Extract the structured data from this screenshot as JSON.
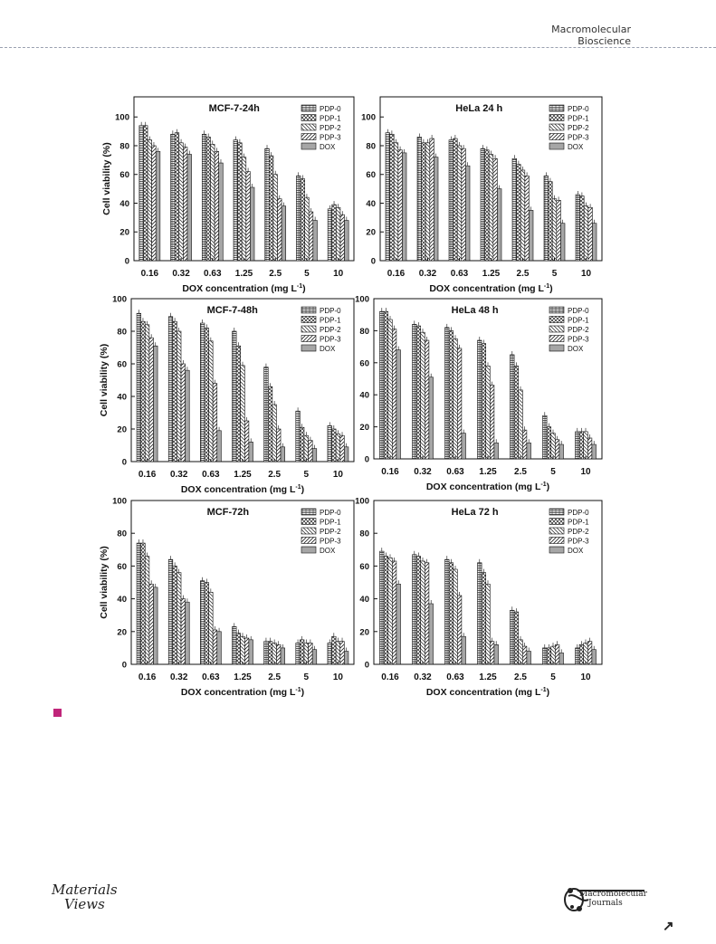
{
  "header": {
    "journal_line1": "Macromolecular",
    "journal_line2": "Bioscience"
  },
  "footer": {
    "left_logo_line1": "Materials",
    "left_logo_line2": "Views",
    "right_logo_line1": "Macromolecular",
    "right_logo_line2": "Journals",
    "next_page_icon": "arrow-up-right-icon"
  },
  "colors": {
    "caption_marker": "#c0257a",
    "bars": "#ffffff",
    "axes": "#111111"
  },
  "chart_data": [
    {
      "type": "bar",
      "title": "MCF-7-24h",
      "categories": [
        "0.16",
        "0.32",
        "0.63",
        "1.25",
        "2.5",
        "5",
        "10"
      ],
      "xlabel": "DOX concentration (mg L",
      "xlabel_sup": "-1",
      "xlabel_close": ")",
      "ylabel": "Cell viability (%)",
      "ylim": [
        0,
        100
      ],
      "yticks": [
        "0",
        "20",
        "40",
        "60",
        "80",
        "100"
      ],
      "legend_position": "top-right",
      "series": [
        {
          "name": "PDP-0",
          "values": [
            94,
            88,
            88,
            84,
            78,
            59,
            36
          ]
        },
        {
          "name": "PDP-1",
          "values": [
            94,
            89,
            86,
            82,
            73,
            57,
            39
          ]
        },
        {
          "name": "PDP-2",
          "values": [
            84,
            82,
            81,
            72,
            60,
            44,
            37
          ]
        },
        {
          "name": "PDP-3",
          "values": [
            80,
            79,
            76,
            62,
            43,
            34,
            32
          ]
        },
        {
          "name": "DOX",
          "values": [
            76,
            74,
            68,
            51,
            38,
            28,
            28
          ]
        }
      ]
    },
    {
      "type": "bar",
      "title": "HeLa 24 h",
      "categories": [
        "0.16",
        "0.32",
        "0.63",
        "1.25",
        "2.5",
        "5",
        "10"
      ],
      "xlabel": "DOX concentration (mg L",
      "xlabel_sup": "-1",
      "xlabel_close": ")",
      "ylabel": "",
      "ylim": [
        0,
        100
      ],
      "yticks": [
        "0",
        "20",
        "40",
        "60",
        "80",
        "100"
      ],
      "legend_position": "top-right",
      "series": [
        {
          "name": "PDP-0",
          "values": [
            89,
            86,
            84,
            78,
            71,
            59,
            46
          ]
        },
        {
          "name": "PDP-1",
          "values": [
            88,
            82,
            85,
            77,
            67,
            55,
            45
          ]
        },
        {
          "name": "PDP-2",
          "values": [
            82,
            82,
            80,
            74,
            63,
            43,
            38
          ]
        },
        {
          "name": "PDP-3",
          "values": [
            77,
            85,
            78,
            71,
            59,
            42,
            37
          ]
        },
        {
          "name": "DOX",
          "values": [
            75,
            72,
            66,
            50,
            35,
            26,
            26
          ]
        }
      ]
    },
    {
      "type": "bar",
      "title": "MCF-7-48h",
      "categories": [
        "0.16",
        "0.32",
        "0.63",
        "1.25",
        "2.5",
        "5",
        "10"
      ],
      "xlabel": "DOX concentration (mg L",
      "xlabel_sup": "-1",
      "xlabel_close": ")",
      "ylabel": "Cell viability (%)",
      "ylim": [
        0,
        100
      ],
      "yticks": [
        "0",
        "20",
        "40",
        "60",
        "80",
        "100"
      ],
      "legend_position": "top-right",
      "series": [
        {
          "name": "PDP-0",
          "values": [
            91,
            89,
            85,
            80,
            58,
            31,
            22
          ]
        },
        {
          "name": "PDP-1",
          "values": [
            86,
            86,
            82,
            71,
            46,
            21,
            20
          ]
        },
        {
          "name": "PDP-2",
          "values": [
            84,
            80,
            74,
            59,
            35,
            16,
            17
          ]
        },
        {
          "name": "PDP-3",
          "values": [
            76,
            60,
            48,
            25,
            20,
            13,
            16
          ]
        },
        {
          "name": "DOX",
          "values": [
            71,
            56,
            19,
            12,
            9,
            8,
            9
          ]
        }
      ]
    },
    {
      "type": "bar",
      "title": "HeLa 48 h",
      "categories": [
        "0.16",
        "0.32",
        "0.63",
        "1.25",
        "2.5",
        "5",
        "10"
      ],
      "xlabel": "DOX concentration (mg L",
      "xlabel_sup": "-1",
      "xlabel_close": ")",
      "ylabel": "",
      "ylim": [
        0,
        100
      ],
      "yticks": [
        "0",
        "20",
        "40",
        "60",
        "80",
        "100"
      ],
      "legend_position": "top-right",
      "series": [
        {
          "name": "PDP-0",
          "values": [
            92,
            84,
            82,
            74,
            65,
            27,
            17
          ]
        },
        {
          "name": "PDP-1",
          "values": [
            92,
            83,
            80,
            72,
            58,
            20,
            17
          ]
        },
        {
          "name": "PDP-2",
          "values": [
            87,
            79,
            75,
            58,
            43,
            16,
            17
          ]
        },
        {
          "name": "PDP-3",
          "values": [
            81,
            74,
            69,
            46,
            18,
            12,
            13
          ]
        },
        {
          "name": "DOX",
          "values": [
            68,
            51,
            16,
            10,
            10,
            9,
            9
          ]
        }
      ]
    },
    {
      "type": "bar",
      "title": "MCF-72h",
      "categories": [
        "0.16",
        "0.32",
        "0.63",
        "1.25",
        "2.5",
        "5",
        "10"
      ],
      "xlabel": "DOX concentration (mg L",
      "xlabel_sup": "-1",
      "xlabel_close": ")",
      "ylabel": "Cell viability (%)",
      "ylim": [
        0,
        100
      ],
      "yticks": [
        "0",
        "20",
        "40",
        "60",
        "80",
        "100"
      ],
      "legend_position": "top-right",
      "series": [
        {
          "name": "PDP-0",
          "values": [
            74,
            64,
            51,
            23,
            14,
            13,
            13
          ]
        },
        {
          "name": "PDP-1",
          "values": [
            74,
            60,
            50,
            19,
            14,
            15,
            17
          ]
        },
        {
          "name": "PDP-2",
          "values": [
            66,
            56,
            44,
            17,
            13,
            13,
            14
          ]
        },
        {
          "name": "PDP-3",
          "values": [
            49,
            40,
            21,
            16,
            12,
            13,
            14
          ]
        },
        {
          "name": "DOX",
          "values": [
            47,
            38,
            20,
            15,
            10,
            9,
            8
          ]
        }
      ]
    },
    {
      "type": "bar",
      "title": "HeLa 72 h",
      "categories": [
        "0.16",
        "0.32",
        "0.63",
        "1.25",
        "2.5",
        "5",
        "10"
      ],
      "xlabel": "DOX concentration (mg L",
      "xlabel_sup": "-1",
      "xlabel_close": ")",
      "ylabel": "",
      "ylim": [
        0,
        100
      ],
      "yticks": [
        "0",
        "20",
        "40",
        "60",
        "80",
        "100"
      ],
      "legend_position": "top-right",
      "series": [
        {
          "name": "PDP-0",
          "values": [
            69,
            67,
            64,
            62,
            33,
            10,
            10
          ]
        },
        {
          "name": "PDP-1",
          "values": [
            66,
            66,
            62,
            56,
            32,
            10,
            12
          ]
        },
        {
          "name": "PDP-2",
          "values": [
            65,
            63,
            58,
            49,
            15,
            11,
            13
          ]
        },
        {
          "name": "PDP-3",
          "values": [
            63,
            62,
            42,
            14,
            11,
            12,
            14
          ]
        },
        {
          "name": "DOX",
          "values": [
            49,
            37,
            17,
            12,
            8,
            7,
            9
          ]
        }
      ]
    }
  ]
}
